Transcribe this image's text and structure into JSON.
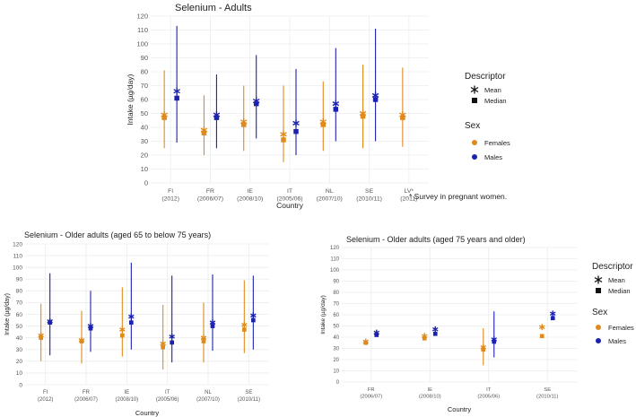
{
  "colors": {
    "females": "#e08a1c",
    "males": "#1c22b0",
    "grid": "#ececec",
    "text": "#222222",
    "axis_text": "#555555"
  },
  "legend": {
    "descriptor_title": "Descriptor",
    "mean_label": "Mean",
    "median_label": "Median",
    "sex_title": "Sex",
    "females_label": "Females",
    "males_label": "Males"
  },
  "footnote": "* Survey in pregnant women.",
  "chart_data": [
    {
      "type": "scatter",
      "title": "Selenium - Adults",
      "xlabel": "Country",
      "ylabel": "Intake (µg/day)",
      "ylim": [
        0,
        120
      ],
      "yticks": [
        0,
        10,
        20,
        30,
        40,
        50,
        60,
        70,
        80,
        90,
        100,
        110,
        120
      ],
      "categories": [
        {
          "country": "FI",
          "year": "(2012)"
        },
        {
          "country": "FR",
          "year": "(2006/07)"
        },
        {
          "country": "IE",
          "year": "(2008/10)"
        },
        {
          "country": "IT",
          "year": "(2005/06)"
        },
        {
          "country": "NL",
          "year": "(2007/10)"
        },
        {
          "country": "SE",
          "year": "(2010/11)"
        },
        {
          "country": "LV*",
          "year": "(2011)"
        }
      ],
      "series": [
        {
          "name": "Females",
          "points": [
            {
              "cat": 0,
              "low": 25,
              "high": 81,
              "mean": 49,
              "median": 47
            },
            {
              "cat": 1,
              "low": 20,
              "high": 63,
              "mean": 38,
              "median": 36
            },
            {
              "cat": 2,
              "low": 23,
              "high": 70,
              "mean": 44,
              "median": 42
            },
            {
              "cat": 3,
              "low": 15,
              "high": 70,
              "mean": 35,
              "median": 31
            },
            {
              "cat": 4,
              "low": 23,
              "high": 73,
              "mean": 44,
              "median": 42
            },
            {
              "cat": 5,
              "low": 25,
              "high": 85,
              "mean": 50,
              "median": 48
            },
            {
              "cat": 6,
              "low": 26,
              "high": 83,
              "mean": 49,
              "median": 47
            }
          ]
        },
        {
          "name": "Males",
          "points": [
            {
              "cat": 0,
              "low": 29,
              "high": 113,
              "mean": 66,
              "median": 61
            },
            {
              "cat": 1,
              "low": 25,
              "high": 78,
              "mean": 49,
              "median": 47
            },
            {
              "cat": 2,
              "low": 32,
              "high": 92,
              "mean": 59,
              "median": 57
            },
            {
              "cat": 3,
              "low": 20,
              "high": 82,
              "mean": 43,
              "median": 37
            },
            {
              "cat": 4,
              "low": 30,
              "high": 97,
              "mean": 57,
              "median": 53
            },
            {
              "cat": 5,
              "low": 30,
              "high": 111,
              "mean": 63,
              "median": 60
            }
          ]
        }
      ]
    },
    {
      "type": "scatter",
      "title": "Selenium - Older adults (aged 65 to below 75 years)",
      "xlabel": "Country",
      "ylabel": "Intake (µg/day)",
      "ylim": [
        0,
        120
      ],
      "yticks": [
        0,
        10,
        20,
        30,
        40,
        50,
        60,
        70,
        80,
        90,
        100,
        110,
        120
      ],
      "categories": [
        {
          "country": "FI",
          "year": "(2012)"
        },
        {
          "country": "FR",
          "year": "(2006/07)"
        },
        {
          "country": "IE",
          "year": "(2008/10)"
        },
        {
          "country": "IT",
          "year": "(2005/06)"
        },
        {
          "country": "NL",
          "year": "(2007/10)"
        },
        {
          "country": "SE",
          "year": "(2010/11)"
        }
      ],
      "series": [
        {
          "name": "Females",
          "points": [
            {
              "cat": 0,
              "low": 20,
              "high": 69,
              "mean": 42,
              "median": 40
            },
            {
              "cat": 1,
              "low": 18,
              "high": 63,
              "mean": 38,
              "median": 37
            },
            {
              "cat": 2,
              "low": 24,
              "high": 83,
              "mean": 47,
              "median": 42
            },
            {
              "cat": 3,
              "low": 13,
              "high": 68,
              "mean": 35,
              "median": 32
            },
            {
              "cat": 4,
              "low": 19,
              "high": 70,
              "mean": 40,
              "median": 37
            },
            {
              "cat": 5,
              "low": 27,
              "high": 89,
              "mean": 51,
              "median": 47
            }
          ]
        },
        {
          "name": "Males",
          "points": [
            {
              "cat": 0,
              "low": 25,
              "high": 95,
              "mean": 54,
              "median": 53
            },
            {
              "cat": 1,
              "low": 28,
              "high": 80,
              "mean": 50,
              "median": 48
            },
            {
              "cat": 2,
              "low": 30,
              "high": 104,
              "mean": 58,
              "median": 53
            },
            {
              "cat": 3,
              "low": 19,
              "high": 93,
              "mean": 41,
              "median": 36
            },
            {
              "cat": 4,
              "low": 29,
              "high": 94,
              "mean": 53,
              "median": 50
            },
            {
              "cat": 5,
              "low": 30,
              "high": 93,
              "mean": 59,
              "median": 55
            }
          ]
        }
      ]
    },
    {
      "type": "scatter",
      "title": "Selenium - Older adults (aged 75 years and older)",
      "xlabel": "Country",
      "ylabel": "Intake (µg/day)",
      "ylim": [
        0,
        120
      ],
      "yticks": [
        0,
        10,
        20,
        30,
        40,
        50,
        60,
        70,
        80,
        90,
        100,
        110,
        120
      ],
      "categories": [
        {
          "country": "FR",
          "year": "(2006/07)"
        },
        {
          "country": "IE",
          "year": "(2008/10)"
        },
        {
          "country": "IT",
          "year": "(2005/06)"
        },
        {
          "country": "SE",
          "year": "(2010/11)"
        }
      ],
      "series": [
        {
          "name": "Females",
          "points": [
            {
              "cat": 0,
              "mean": 36,
              "median": 35
            },
            {
              "cat": 1,
              "mean": 41,
              "median": 39
            },
            {
              "cat": 2,
              "low": 15,
              "high": 48,
              "mean": 31,
              "median": 29
            },
            {
              "cat": 3,
              "mean": 49,
              "median": 41
            }
          ]
        },
        {
          "name": "Males",
          "points": [
            {
              "cat": 0,
              "mean": 44,
              "median": 42
            },
            {
              "cat": 1,
              "mean": 47,
              "median": 43
            },
            {
              "cat": 2,
              "low": 22,
              "high": 63,
              "mean": 38,
              "median": 36
            },
            {
              "cat": 3,
              "mean": 61,
              "median": 57
            }
          ]
        }
      ]
    }
  ]
}
